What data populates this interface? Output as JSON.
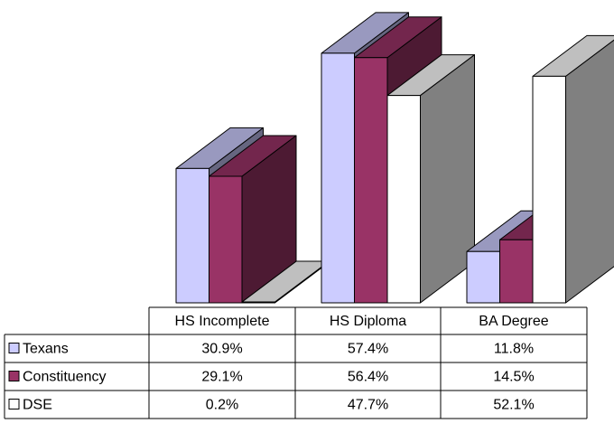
{
  "chart_data": {
    "type": "bar",
    "categories": [
      "HS Incomplete",
      "HS Diploma",
      "BA Degree"
    ],
    "series": [
      {
        "name": "Texans",
        "color": "#ccccff",
        "values": [
          30.9,
          57.4,
          11.8
        ],
        "value_labels": [
          "30.9%",
          "57.4%",
          "11.8%"
        ]
      },
      {
        "name": "Constituency",
        "color": "#993366",
        "values": [
          29.1,
          56.4,
          14.5
        ],
        "value_labels": [
          "29.1%",
          "56.4%",
          "14.5%"
        ]
      },
      {
        "name": "DSE",
        "color": "#ffffff",
        "values": [
          0.2,
          47.7,
          52.1
        ],
        "value_labels": [
          "0.2%",
          "47.7%",
          "52.1%"
        ]
      }
    ]
  }
}
